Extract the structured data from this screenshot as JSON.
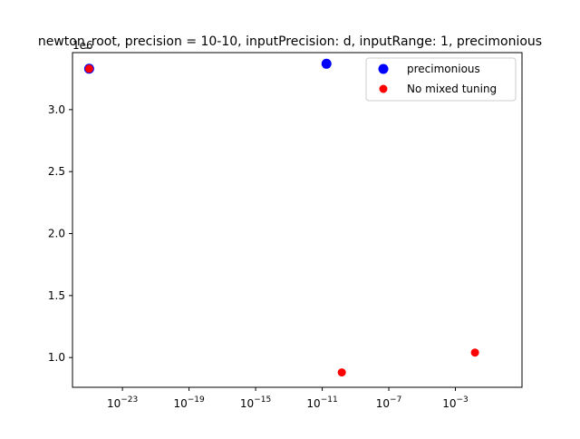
{
  "chart_data": {
    "type": "scatter",
    "title": "newton_root, precision = 10-10, inputPrecision: d, inputRange: 1, precimonious",
    "xlabel": "",
    "ylabel": "",
    "xscale": "log",
    "xlim": [
      1e-26,
      10.0
    ],
    "ylim": [
      0.76,
      3.46
    ],
    "y_multiplier_label": "1e6",
    "x_ticks": [
      {
        "value": 1e-23,
        "base": "10",
        "exp": "−23"
      },
      {
        "value": 1e-19,
        "base": "10",
        "exp": "−19"
      },
      {
        "value": 1e-15,
        "base": "10",
        "exp": "−15"
      },
      {
        "value": 1e-11,
        "base": "10",
        "exp": "−11"
      },
      {
        "value": 1e-07,
        "base": "10",
        "exp": "−7"
      },
      {
        "value": 0.001,
        "base": "10",
        "exp": "−3"
      }
    ],
    "y_ticks": [
      {
        "value": 1.0,
        "label": "1.0"
      },
      {
        "value": 1.5,
        "label": "1.5"
      },
      {
        "value": 2.0,
        "label": "2.0"
      },
      {
        "value": 2.5,
        "label": "2.5"
      },
      {
        "value": 3.0,
        "label": "3.0"
      }
    ],
    "grid": false,
    "legend_position": "top-right",
    "series": [
      {
        "name": "precimonious",
        "color": "#0000ff",
        "marker_size": "large",
        "points": [
          {
            "x": 1e-25,
            "y": 3.33
          },
          {
            "x": 1.8e-11,
            "y": 3.37
          }
        ]
      },
      {
        "name": "No mixed tuning",
        "color": "#ff0000",
        "marker_size": "small",
        "points": [
          {
            "x": 1e-25,
            "y": 3.33
          },
          {
            "x": 1.5e-10,
            "y": 0.88
          },
          {
            "x": 0.015,
            "y": 1.04
          }
        ]
      }
    ]
  }
}
